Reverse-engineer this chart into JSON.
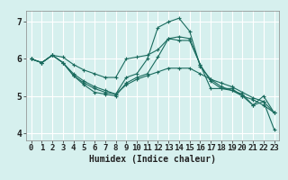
{
  "title": "",
  "xlabel": "Humidex (Indice chaleur)",
  "bg_color": "#d6f0ee",
  "line_color": "#1a6b5e",
  "grid_color": "#ffffff",
  "xlim": [
    -0.5,
    23.5
  ],
  "ylim": [
    3.8,
    7.3
  ],
  "yticks": [
    4,
    5,
    6,
    7
  ],
  "xticks": [
    0,
    1,
    2,
    3,
    4,
    5,
    6,
    7,
    8,
    9,
    10,
    11,
    12,
    13,
    14,
    15,
    16,
    17,
    18,
    19,
    20,
    21,
    22,
    23
  ],
  "series": [
    [
      6.0,
      5.9,
      6.1,
      6.05,
      5.85,
      5.7,
      5.6,
      5.5,
      5.5,
      6.0,
      6.05,
      6.1,
      6.25,
      6.55,
      6.6,
      6.55,
      5.85,
      5.4,
      5.2,
      5.15,
      5.0,
      4.9,
      4.75,
      4.55
    ],
    [
      6.0,
      5.9,
      6.1,
      5.9,
      5.55,
      5.35,
      5.2,
      5.1,
      5.05,
      5.5,
      5.6,
      6.0,
      6.85,
      7.0,
      7.1,
      6.75,
      5.8,
      5.45,
      5.25,
      5.15,
      5.05,
      4.75,
      5.0,
      4.55
    ],
    [
      6.0,
      5.9,
      6.1,
      5.9,
      5.55,
      5.3,
      5.1,
      5.05,
      5.0,
      5.35,
      5.5,
      5.6,
      6.05,
      6.55,
      6.5,
      6.5,
      5.85,
      5.2,
      5.2,
      5.2,
      5.0,
      4.75,
      4.85,
      4.55
    ],
    [
      6.0,
      5.9,
      6.1,
      5.9,
      5.6,
      5.4,
      5.25,
      5.15,
      5.05,
      5.3,
      5.45,
      5.55,
      5.65,
      5.75,
      5.75,
      5.75,
      5.6,
      5.45,
      5.35,
      5.25,
      5.1,
      4.95,
      4.85,
      4.1
    ]
  ],
  "tick_label_fontsize": 6.5,
  "xlabel_fontsize": 7.0
}
